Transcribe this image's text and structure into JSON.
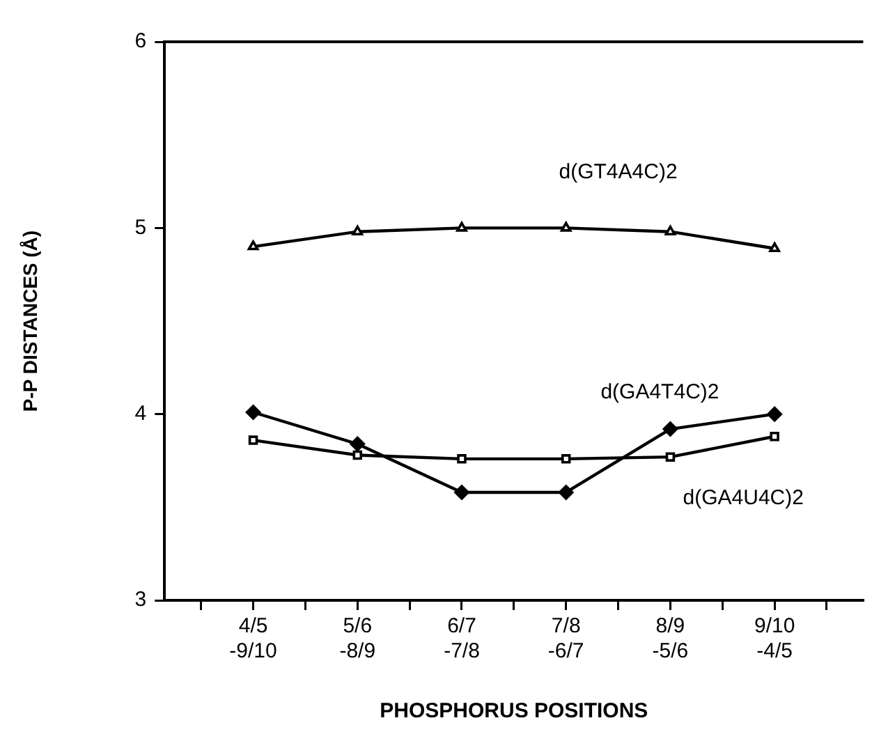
{
  "chart_data": {
    "type": "line",
    "xlabel": "PHOSPHORUS POSITIONS",
    "ylabel": "P-P DISTANCES (Å)",
    "categories": [
      "4/5 -9/10",
      "5/6 -8/9",
      "6/7 -7/8",
      "7/8 -6/7",
      "8/9 -5/6",
      "9/10 -4/5"
    ],
    "ylim": [
      3,
      6
    ],
    "yticks": [
      3,
      4,
      5,
      6
    ],
    "grid": false,
    "legend": false,
    "line_style": "solid",
    "series": [
      {
        "name": "d(GT4A4C)2",
        "color": "#000000",
        "marker": "triangle",
        "values": [
          4.9,
          4.98,
          5.0,
          5.0,
          4.98,
          4.89
        ]
      },
      {
        "name": "d(GA4T4C)2",
        "color": "#000000",
        "marker": "diamond",
        "values": [
          4.01,
          3.84,
          3.58,
          3.58,
          3.92,
          4.0
        ]
      },
      {
        "name": "d(GA4U4C)2",
        "color": "#000000",
        "marker": "square",
        "values": [
          3.86,
          3.78,
          3.76,
          3.76,
          3.77,
          3.88
        ]
      }
    ]
  }
}
